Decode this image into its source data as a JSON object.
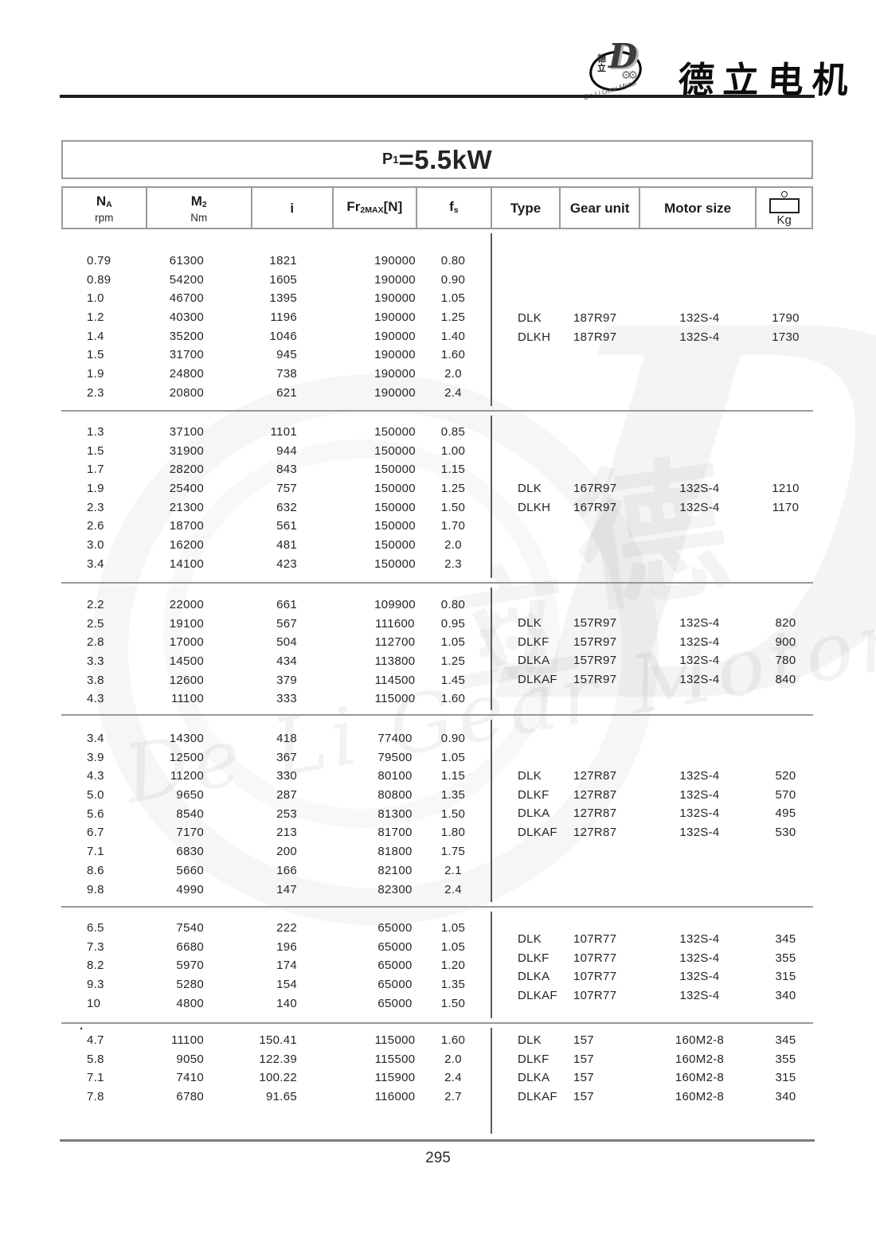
{
  "logo": {
    "brand_cn": "德立电机",
    "badge_top": "德",
    "badge_bottom": "立",
    "badge_letter": "D",
    "badge_gears": "⚙⚙",
    "arc_text": "De Li Gear Motor"
  },
  "title": {
    "prefix": "P",
    "subscript": "1",
    "value": "=5.5kW"
  },
  "table": {
    "header": {
      "columns": [
        {
          "id": "na",
          "main": "N",
          "sub": "A",
          "unit": "rpm"
        },
        {
          "id": "m2",
          "main": "M",
          "sub": "2",
          "unit": "Nm"
        },
        {
          "id": "i",
          "main": "i"
        },
        {
          "id": "fr",
          "main": "Fr",
          "sub": "2MAX",
          "suffix": "[N]"
        },
        {
          "id": "fs",
          "main": "f",
          "sub": "s"
        },
        {
          "id": "type",
          "main": "Type"
        },
        {
          "id": "gear",
          "main": "Gear unit"
        },
        {
          "id": "motor",
          "main": "Motor size"
        },
        {
          "id": "kg",
          "icon": "weight-icon",
          "label": "Kg"
        }
      ]
    },
    "blocks": [
      {
        "rows": [
          [
            "0.79",
            "61300",
            "1821",
            "190000",
            "0.80"
          ],
          [
            "0.89",
            "54200",
            "1605",
            "190000",
            "0.90"
          ],
          [
            "1.0",
            "46700",
            "1395",
            "190000",
            "1.05"
          ],
          [
            "1.2",
            "40300",
            "1196",
            "190000",
            "1.25"
          ],
          [
            "1.4",
            "35200",
            "1046",
            "190000",
            "1.40"
          ],
          [
            "1.5",
            "31700",
            "945",
            "190000",
            "1.60"
          ],
          [
            "1.9",
            "24800",
            "738",
            "190000",
            "2.0"
          ],
          [
            "2.3",
            "20800",
            "621",
            "190000",
            "2.4"
          ]
        ],
        "types": [
          [
            "DLK",
            "187R97",
            "132S-4",
            "1790"
          ],
          [
            "DLKH",
            "187R97",
            "132S-4",
            "1730"
          ]
        ]
      },
      {
        "rows": [
          [
            "1.3",
            "37100",
            "1101",
            "150000",
            "0.85"
          ],
          [
            "1.5",
            "31900",
            "944",
            "150000",
            "1.00"
          ],
          [
            "1.7",
            "28200",
            "843",
            "150000",
            "1.15"
          ],
          [
            "1.9",
            "25400",
            "757",
            "150000",
            "1.25"
          ],
          [
            "2.3",
            "21300",
            "632",
            "150000",
            "1.50"
          ],
          [
            "2.6",
            "18700",
            "561",
            "150000",
            "1.70"
          ],
          [
            "3.0",
            "16200",
            "481",
            "150000",
            "2.0"
          ],
          [
            "3.4",
            "14100",
            "423",
            "150000",
            "2.3"
          ]
        ],
        "types": [
          [
            "DLK",
            "167R97",
            "132S-4",
            "1210"
          ],
          [
            "DLKH",
            "167R97",
            "132S-4",
            "1170"
          ]
        ]
      },
      {
        "rows": [
          [
            "2.2",
            "22000",
            "661",
            "109900",
            "0.80"
          ],
          [
            "2.5",
            "19100",
            "567",
            "111600",
            "0.95"
          ],
          [
            "2.8",
            "17000",
            "504",
            "112700",
            "1.05"
          ],
          [
            "3.3",
            "14500",
            "434",
            "113800",
            "1.25"
          ],
          [
            "3.8",
            "12600",
            "379",
            "114500",
            "1.45"
          ],
          [
            "4.3",
            "11100",
            "333",
            "115000",
            "1.60"
          ]
        ],
        "types": [
          [
            "DLK",
            "157R97",
            "132S-4",
            "820"
          ],
          [
            "DLKF",
            "157R97",
            "132S-4",
            "900"
          ],
          [
            "DLKA",
            "157R97",
            "132S-4",
            "780"
          ],
          [
            "DLKAF",
            "157R97",
            "132S-4",
            "840"
          ]
        ]
      },
      {
        "rows": [
          [
            "3.4",
            "14300",
            "418",
            "77400",
            "0.90"
          ],
          [
            "3.9",
            "12500",
            "367",
            "79500",
            "1.05"
          ],
          [
            "4.3",
            "11200",
            "330",
            "80100",
            "1.15"
          ],
          [
            "5.0",
            "9650",
            "287",
            "80800",
            "1.35"
          ],
          [
            "5.6",
            "8540",
            "253",
            "81300",
            "1.50"
          ],
          [
            "6.7",
            "7170",
            "213",
            "81700",
            "1.80"
          ],
          [
            "7.1",
            "6830",
            "200",
            "81800",
            "1.75"
          ],
          [
            "8.6",
            "5660",
            "166",
            "82100",
            "2.1"
          ],
          [
            "9.8",
            "4990",
            "147",
            "82300",
            "2.4"
          ]
        ],
        "types": [
          [
            "DLK",
            "127R87",
            "132S-4",
            "520"
          ],
          [
            "DLKF",
            "127R87",
            "132S-4",
            "570"
          ],
          [
            "DLKA",
            "127R87",
            "132S-4",
            "495"
          ],
          [
            "DLKAF",
            "127R87",
            "132S-4",
            "530"
          ]
        ]
      },
      {
        "rows": [
          [
            "6.5",
            "7540",
            "222",
            "65000",
            "1.05"
          ],
          [
            "7.3",
            "6680",
            "196",
            "65000",
            "1.05"
          ],
          [
            "8.2",
            "5970",
            "174",
            "65000",
            "1.20"
          ],
          [
            "9.3",
            "5280",
            "154",
            "65000",
            "1.35"
          ],
          [
            "10",
            "4800",
            "140",
            "65000",
            "1.50"
          ]
        ],
        "types": [
          [
            "DLK",
            "107R77",
            "132S-4",
            "345"
          ],
          [
            "DLKF",
            "107R77",
            "132S-4",
            "355"
          ],
          [
            "DLKA",
            "107R77",
            "132S-4",
            "315"
          ],
          [
            "DLKAF",
            "107R77",
            "132S-4",
            "340"
          ]
        ]
      },
      {
        "rows": [
          [
            "4.7",
            "11100",
            "150.41",
            "115000",
            "1.60"
          ],
          [
            "5.8",
            "9050",
            "122.39",
            "115500",
            "2.0"
          ],
          [
            "7.1",
            "7410",
            "100.22",
            "115900",
            "2.4"
          ],
          [
            "7.8",
            "6780",
            "91.65",
            "116000",
            "2.7"
          ]
        ],
        "types": [
          [
            "DLK",
            "157",
            "160M2-8",
            "345"
          ],
          [
            "DLKF",
            "157",
            "160M2-8",
            "355"
          ],
          [
            "DLKA",
            "157",
            "160M2-8",
            "315"
          ],
          [
            "DLKAF",
            "157",
            "160M2-8",
            "340"
          ]
        ]
      }
    ]
  },
  "stray_mark": ".",
  "watermark": {
    "script_text": "De Li Gear Motor",
    "char_de": "德",
    "char_li": "立",
    "big_letter": "D",
    "gear_glyph": "⚙"
  },
  "footer": {
    "page_number": "295"
  }
}
